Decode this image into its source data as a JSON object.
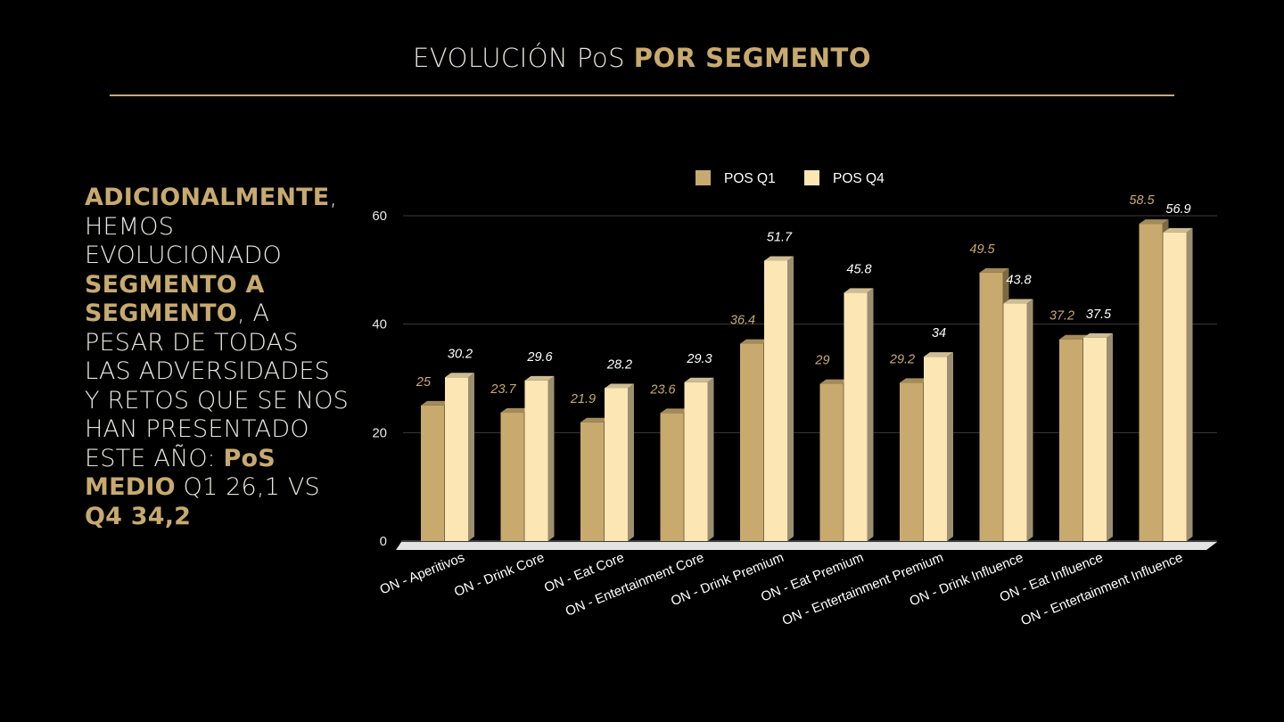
{
  "slide": {
    "title_regular": "EVOLUCIÓN PoS",
    "title_bold": "POR SEGMENTO"
  },
  "side_text": {
    "p1_bold": "ADICIONALMENTE",
    "p2": ", HEMOS EVOLUCIONADO",
    "p3_bold": "SEGMENTO A SEGMENTO",
    "p4": ", A PESAR DE TODAS LAS ADVERSIDADES Y RETOS QUE SE NOS HAN PRESENTADO ESTE AÑO: ",
    "p5_bold": "PoS MEDIO",
    "p6": " Q1 26,1 VS ",
    "p7_bold": "Q4 34,2"
  },
  "colors": {
    "background": "#000000",
    "accent": "#c8aa6e",
    "q1_bar": "#c8aa6e",
    "q4_bar": "#fbe6b4"
  },
  "chart_data": {
    "type": "bar",
    "categories": [
      "ON - Aperitivos",
      "ON - Drink Core",
      "ON - Eat Core",
      "ON - Entertainment Core",
      "ON - Drink Premium",
      "ON - Eat Premium",
      "ON - Entertainment Premium",
      "ON - Drink Influence",
      "ON - Eat Influence",
      "ON - Entertainment Influence"
    ],
    "series": [
      {
        "name": "POS Q1",
        "values": [
          25,
          23.7,
          21.9,
          23.6,
          36.4,
          29,
          29.2,
          49.5,
          37.2,
          58.5
        ],
        "labels": [
          "25",
          "23.7",
          "21.9",
          "23.6",
          "36.4",
          "29",
          "29.2",
          "49.5",
          "37.2",
          "58.5"
        ]
      },
      {
        "name": "POS Q4",
        "values": [
          30.2,
          29.6,
          28.2,
          29.3,
          51.7,
          45.8,
          34,
          43.8,
          37.5,
          56.9
        ],
        "labels": [
          "30.2",
          "29.6",
          "28.2",
          "29.3",
          "51.7",
          "45.8",
          "34",
          "43.8",
          "37.5",
          "56.9"
        ]
      }
    ],
    "yticks": [
      "0",
      "20",
      "40",
      "60"
    ],
    "ylim": [
      0,
      60
    ],
    "grid": true,
    "legend_position": "top-center"
  }
}
